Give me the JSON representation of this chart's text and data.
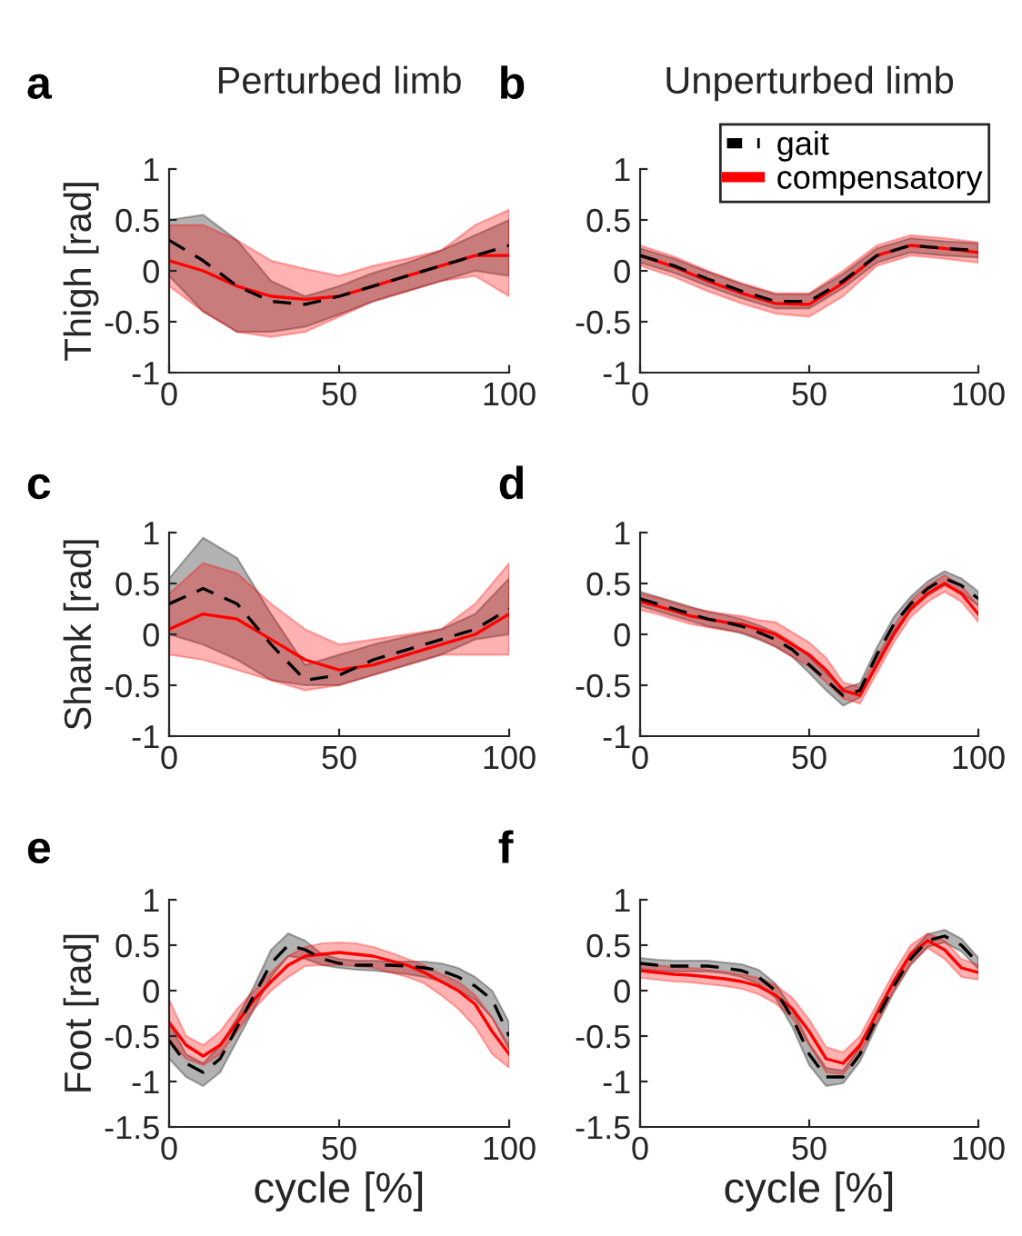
{
  "chart_data": [
    {
      "type": "line",
      "title": "Perturbed limb",
      "annotations": [
        "a"
      ],
      "ylabel": "Thigh [rad]",
      "x": [
        0,
        10,
        20,
        30,
        40,
        50,
        60,
        70,
        80,
        90,
        100
      ],
      "xlim": [
        0,
        100
      ],
      "xticks": [
        0,
        50,
        100
      ],
      "ylim": [
        -1,
        1
      ],
      "yticks": [
        -1,
        -0.5,
        0,
        0.5,
        1
      ],
      "grid": false,
      "legend": false,
      "series": [
        {
          "color": "#000000",
          "line_style": "dashed",
          "values": [
            0.3,
            0.1,
            -0.15,
            -0.3,
            -0.33,
            -0.25,
            -0.15,
            -0.05,
            0.05,
            0.15,
            0.25
          ],
          "lower": [
            -0.05,
            -0.4,
            -0.6,
            -0.6,
            -0.55,
            -0.43,
            -0.3,
            -0.2,
            -0.1,
            0.0,
            -0.05
          ],
          "upper": [
            0.5,
            0.55,
            0.3,
            -0.1,
            -0.25,
            -0.15,
            -0.02,
            0.08,
            0.2,
            0.35,
            0.5
          ]
        },
        {
          "color": "#ff0000",
          "line_style": "solid",
          "values": [
            0.1,
            0.0,
            -0.15,
            -0.25,
            -0.28,
            -0.25,
            -0.15,
            -0.05,
            0.05,
            0.15,
            0.15
          ],
          "lower": [
            -0.15,
            -0.4,
            -0.6,
            -0.65,
            -0.6,
            -0.45,
            -0.3,
            -0.2,
            -0.1,
            -0.05,
            -0.25
          ],
          "upper": [
            0.45,
            0.45,
            0.3,
            0.1,
            0.02,
            -0.05,
            0.05,
            0.12,
            0.2,
            0.45,
            0.6
          ]
        }
      ]
    },
    {
      "type": "line",
      "title": "Unperturbed limb",
      "annotations": [
        "b"
      ],
      "x": [
        0,
        10,
        20,
        30,
        40,
        50,
        60,
        70,
        80,
        90,
        100
      ],
      "xlim": [
        0,
        100
      ],
      "xticks": [
        0,
        50,
        100
      ],
      "ylim": [
        -1,
        1
      ],
      "yticks": [
        -1,
        -0.5,
        0,
        0.5,
        1
      ],
      "grid": false,
      "legend": "top right",
      "series": [
        {
          "name": "gait",
          "color": "#000000",
          "line_style": "dashed",
          "values": [
            0.15,
            0.05,
            -0.08,
            -0.2,
            -0.3,
            -0.3,
            -0.1,
            0.15,
            0.25,
            0.22,
            0.2
          ],
          "lower": [
            0.08,
            -0.02,
            -0.15,
            -0.27,
            -0.37,
            -0.37,
            -0.17,
            0.08,
            0.18,
            0.15,
            0.13
          ],
          "upper": [
            0.22,
            0.12,
            -0.01,
            -0.13,
            -0.23,
            -0.23,
            -0.03,
            0.22,
            0.32,
            0.29,
            0.27
          ]
        },
        {
          "name": "compensatory",
          "color": "#ff0000",
          "line_style": "solid",
          "values": [
            0.15,
            0.04,
            -0.1,
            -0.22,
            -0.32,
            -0.33,
            -0.12,
            0.15,
            0.25,
            0.22,
            0.18
          ],
          "lower": [
            0.05,
            -0.06,
            -0.2,
            -0.32,
            -0.42,
            -0.45,
            -0.25,
            0.05,
            0.15,
            0.12,
            0.08
          ],
          "upper": [
            0.25,
            0.14,
            0.0,
            -0.12,
            -0.22,
            -0.22,
            0.0,
            0.25,
            0.35,
            0.32,
            0.28
          ]
        }
      ]
    },
    {
      "type": "line",
      "annotations": [
        "c"
      ],
      "ylabel": "Shank [rad]",
      "x": [
        0,
        10,
        20,
        30,
        40,
        50,
        60,
        70,
        80,
        90,
        100
      ],
      "xlim": [
        0,
        100
      ],
      "xticks": [
        0,
        50,
        100
      ],
      "ylim": [
        -1,
        1
      ],
      "yticks": [
        -1,
        -0.5,
        0,
        0.5,
        1
      ],
      "grid": false,
      "legend": false,
      "series": [
        {
          "color": "#000000",
          "line_style": "dashed",
          "values": [
            0.3,
            0.45,
            0.3,
            -0.1,
            -0.45,
            -0.4,
            -0.25,
            -0.15,
            -0.05,
            0.05,
            0.25
          ],
          "lower": [
            0.0,
            -0.1,
            -0.25,
            -0.45,
            -0.5,
            -0.5,
            -0.4,
            -0.3,
            -0.2,
            -0.05,
            0.0
          ],
          "upper": [
            0.55,
            0.95,
            0.75,
            0.2,
            -0.3,
            -0.2,
            -0.1,
            -0.02,
            0.05,
            0.2,
            0.55
          ]
        },
        {
          "color": "#ff0000",
          "line_style": "solid",
          "values": [
            0.05,
            0.2,
            0.15,
            -0.05,
            -0.25,
            -0.35,
            -0.3,
            -0.2,
            -0.1,
            0.0,
            0.2
          ],
          "lower": [
            -0.2,
            -0.25,
            -0.35,
            -0.45,
            -0.55,
            -0.5,
            -0.4,
            -0.3,
            -0.2,
            -0.2,
            -0.2
          ],
          "upper": [
            0.4,
            0.7,
            0.6,
            0.3,
            0.05,
            -0.1,
            -0.05,
            0.0,
            0.05,
            0.3,
            0.7
          ]
        }
      ]
    },
    {
      "type": "line",
      "annotations": [
        "d"
      ],
      "x": [
        0,
        5,
        10,
        15,
        20,
        25,
        30,
        35,
        40,
        45,
        50,
        55,
        60,
        65,
        70,
        75,
        80,
        85,
        90,
        95,
        100
      ],
      "xlim": [
        0,
        100
      ],
      "xticks": [
        0,
        50,
        100
      ],
      "ylim": [
        -1,
        1
      ],
      "yticks": [
        -1,
        -0.5,
        0,
        0.5,
        1
      ],
      "grid": false,
      "legend": false,
      "series": [
        {
          "color": "#000000",
          "line_style": "dashed",
          "values": [
            0.35,
            0.3,
            0.25,
            0.2,
            0.15,
            0.12,
            0.08,
            0.02,
            -0.05,
            -0.15,
            -0.3,
            -0.45,
            -0.6,
            -0.55,
            -0.2,
            0.1,
            0.3,
            0.45,
            0.55,
            0.48,
            0.35
          ],
          "lower": [
            0.28,
            0.23,
            0.18,
            0.13,
            0.08,
            0.05,
            0.01,
            -0.05,
            -0.12,
            -0.22,
            -0.38,
            -0.55,
            -0.7,
            -0.62,
            -0.27,
            0.03,
            0.23,
            0.38,
            0.48,
            0.41,
            0.28
          ],
          "upper": [
            0.42,
            0.37,
            0.32,
            0.27,
            0.22,
            0.19,
            0.15,
            0.09,
            0.02,
            -0.08,
            -0.22,
            -0.38,
            -0.53,
            -0.48,
            -0.13,
            0.17,
            0.37,
            0.52,
            0.62,
            0.55,
            0.42
          ]
        },
        {
          "color": "#ff0000",
          "line_style": "solid",
          "values": [
            0.32,
            0.28,
            0.23,
            0.18,
            0.15,
            0.12,
            0.1,
            0.05,
            0.0,
            -0.1,
            -0.2,
            -0.35,
            -0.55,
            -0.6,
            -0.3,
            0.0,
            0.25,
            0.4,
            0.5,
            0.4,
            0.2
          ],
          "lower": [
            0.24,
            0.2,
            0.15,
            0.1,
            0.07,
            0.04,
            0.02,
            -0.04,
            -0.12,
            -0.22,
            -0.32,
            -0.47,
            -0.63,
            -0.68,
            -0.38,
            -0.08,
            0.17,
            0.32,
            0.42,
            0.32,
            0.12
          ],
          "upper": [
            0.4,
            0.36,
            0.31,
            0.26,
            0.23,
            0.2,
            0.18,
            0.14,
            0.12,
            0.02,
            -0.08,
            -0.23,
            -0.47,
            -0.52,
            -0.22,
            0.08,
            0.33,
            0.48,
            0.58,
            0.48,
            0.28
          ]
        }
      ]
    },
    {
      "type": "line",
      "annotations": [
        "e"
      ],
      "ylabel": "Foot [rad]",
      "xlabel": "cycle [%]",
      "x": [
        0,
        5,
        10,
        15,
        20,
        25,
        30,
        35,
        40,
        45,
        50,
        55,
        60,
        65,
        70,
        75,
        80,
        85,
        90,
        95,
        100
      ],
      "xlim": [
        0,
        100
      ],
      "xticks": [
        0,
        50,
        100
      ],
      "ylim": [
        -1.5,
        1
      ],
      "yticks": [
        -1.5,
        -1,
        -0.5,
        0,
        0.5,
        1
      ],
      "grid": false,
      "legend": false,
      "series": [
        {
          "color": "#000000",
          "line_style": "dashed",
          "values": [
            -0.55,
            -0.8,
            -0.9,
            -0.75,
            -0.4,
            -0.05,
            0.3,
            0.5,
            0.45,
            0.35,
            0.3,
            0.28,
            0.28,
            0.28,
            0.27,
            0.25,
            0.22,
            0.15,
            0.05,
            -0.1,
            -0.5
          ],
          "lower": [
            -0.75,
            -0.95,
            -1.05,
            -0.9,
            -0.55,
            -0.2,
            0.15,
            0.38,
            0.35,
            0.28,
            0.25,
            0.23,
            0.22,
            0.2,
            0.18,
            0.15,
            0.1,
            0.0,
            -0.1,
            -0.3,
            -0.65
          ],
          "upper": [
            -0.35,
            -0.7,
            -0.8,
            -0.6,
            -0.3,
            0.05,
            0.45,
            0.63,
            0.55,
            0.4,
            0.35,
            0.33,
            0.33,
            0.32,
            0.32,
            0.32,
            0.3,
            0.25,
            0.15,
            0.0,
            -0.35
          ]
        },
        {
          "color": "#ff0000",
          "line_style": "solid",
          "values": [
            -0.35,
            -0.6,
            -0.72,
            -0.6,
            -0.35,
            -0.1,
            0.1,
            0.28,
            0.38,
            0.4,
            0.42,
            0.4,
            0.38,
            0.33,
            0.28,
            0.2,
            0.1,
            0.0,
            -0.15,
            -0.45,
            -0.7
          ],
          "lower": [
            -0.55,
            -0.75,
            -0.82,
            -0.7,
            -0.45,
            -0.2,
            0.0,
            0.15,
            0.27,
            0.28,
            0.28,
            0.27,
            0.25,
            0.2,
            0.15,
            0.08,
            -0.05,
            -0.2,
            -0.4,
            -0.7,
            -0.85
          ],
          "upper": [
            -0.1,
            -0.5,
            -0.6,
            -0.45,
            -0.2,
            0.0,
            0.2,
            0.38,
            0.48,
            0.52,
            0.53,
            0.52,
            0.48,
            0.42,
            0.35,
            0.28,
            0.18,
            0.1,
            -0.05,
            -0.3,
            -0.6
          ]
        }
      ]
    },
    {
      "type": "line",
      "annotations": [
        "f"
      ],
      "xlabel": "cycle [%]",
      "x": [
        0,
        5,
        10,
        15,
        20,
        25,
        30,
        35,
        40,
        45,
        50,
        55,
        60,
        65,
        70,
        75,
        80,
        85,
        90,
        95,
        100
      ],
      "xlim": [
        0,
        100
      ],
      "xticks": [
        0,
        50,
        100
      ],
      "ylim": [
        -1.5,
        1
      ],
      "yticks": [
        -1.5,
        -1,
        -0.5,
        0,
        0.5,
        1
      ],
      "grid": false,
      "legend": false,
      "series": [
        {
          "color": "#000000",
          "line_style": "dashed",
          "values": [
            0.3,
            0.28,
            0.27,
            0.27,
            0.27,
            0.25,
            0.22,
            0.15,
            0.0,
            -0.3,
            -0.7,
            -0.95,
            -0.95,
            -0.7,
            -0.3,
            0.05,
            0.35,
            0.55,
            0.6,
            0.5,
            0.3
          ],
          "lower": [
            0.24,
            0.22,
            0.21,
            0.21,
            0.21,
            0.19,
            0.15,
            0.07,
            -0.08,
            -0.4,
            -0.82,
            -1.05,
            -1.02,
            -0.78,
            -0.38,
            -0.02,
            0.28,
            0.48,
            0.53,
            0.43,
            0.24
          ],
          "upper": [
            0.36,
            0.34,
            0.33,
            0.33,
            0.33,
            0.31,
            0.29,
            0.23,
            0.08,
            -0.2,
            -0.58,
            -0.85,
            -0.88,
            -0.62,
            -0.22,
            0.12,
            0.42,
            0.62,
            0.67,
            0.57,
            0.36
          ]
        },
        {
          "color": "#ff0000",
          "line_style": "solid",
          "values": [
            0.22,
            0.2,
            0.18,
            0.17,
            0.15,
            0.13,
            0.1,
            0.05,
            -0.05,
            -0.2,
            -0.45,
            -0.75,
            -0.8,
            -0.6,
            -0.25,
            0.1,
            0.4,
            0.55,
            0.45,
            0.25,
            0.2
          ],
          "lower": [
            0.14,
            0.12,
            0.1,
            0.09,
            0.07,
            0.05,
            0.02,
            -0.04,
            -0.14,
            -0.3,
            -0.6,
            -0.9,
            -0.92,
            -0.7,
            -0.35,
            0.0,
            0.3,
            0.47,
            0.35,
            0.15,
            0.12
          ],
          "upper": [
            0.3,
            0.28,
            0.26,
            0.25,
            0.23,
            0.21,
            0.18,
            0.14,
            0.06,
            -0.08,
            -0.32,
            -0.62,
            -0.68,
            -0.5,
            -0.15,
            0.2,
            0.5,
            0.63,
            0.55,
            0.35,
            0.28
          ]
        }
      ]
    }
  ]
}
